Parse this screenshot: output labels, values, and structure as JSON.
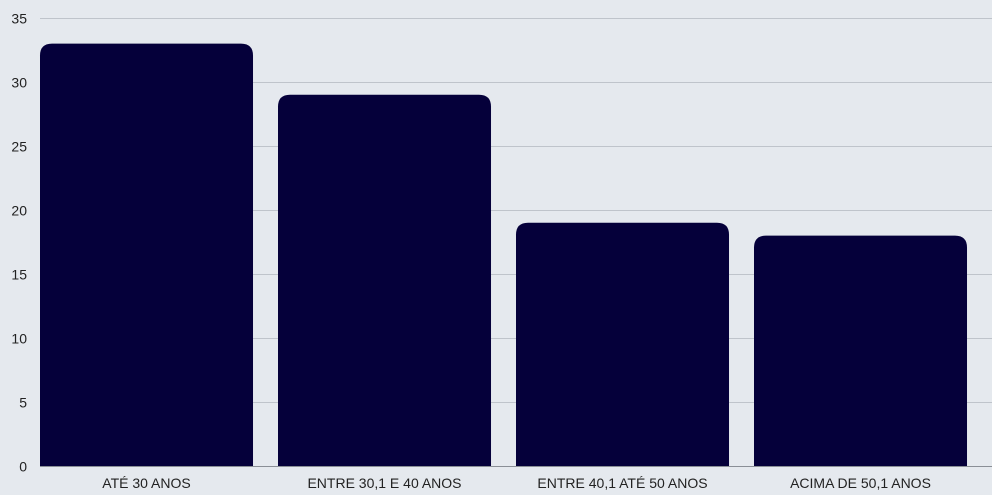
{
  "chart_data": {
    "type": "bar",
    "categories": [
      "ATÉ 30 ANOS",
      "ENTRE 30,1 E 40 ANOS",
      "ENTRE 40,1 ATÉ 50 ANOS",
      "ACIMA DE 50,1 ANOS"
    ],
    "values": [
      33,
      29,
      19,
      18
    ],
    "title": "",
    "xlabel": "",
    "ylabel": "",
    "ylim": [
      0,
      35
    ],
    "yticks": [
      0,
      5,
      10,
      15,
      20,
      25,
      30,
      35
    ],
    "grid": true,
    "legend": "none",
    "colors": {
      "bar": "#05003a",
      "background": "#e5e9ee",
      "gridline": "#bfc4cb",
      "text": "#222222"
    }
  }
}
